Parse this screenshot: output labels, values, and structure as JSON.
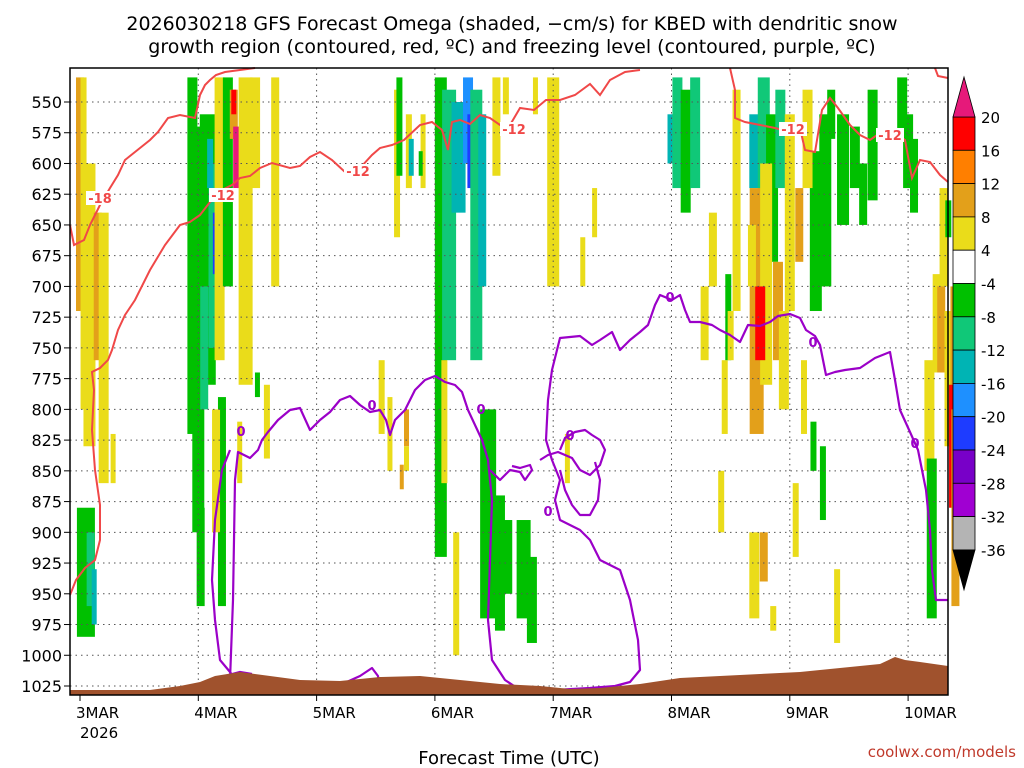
{
  "chart_data": {
    "type": "heatmap",
    "title": [
      "2026030218 GFS Forecast Omega (shaded, −cm/s) for KBED with dendritic snow",
      "growth region (contoured, red, ºC) and freezing level (contoured, purple, ºC)"
    ],
    "xlabel": "Forecast Time (UTC)",
    "credit": "coolwx.com/models",
    "x_ticks": [
      "3MAR",
      "4MAR",
      "5MAR",
      "6MAR",
      "7MAR",
      "8MAR",
      "9MAR",
      "10MAR"
    ],
    "x_tick_year": "2026",
    "y_ticks": [
      "550",
      "575",
      "600",
      "625",
      "650",
      "675",
      "700",
      "725",
      "750",
      "775",
      "800",
      "825",
      "850",
      "875",
      "900",
      "925",
      "950",
      "975",
      "1000",
      "1025"
    ],
    "ylim": [
      1033,
      530
    ],
    "grid": true,
    "colorbar": {
      "labels": [
        "20",
        "16",
        "12",
        "8",
        "4",
        "-4",
        "-8",
        "-12",
        "-16",
        "-20",
        "-24",
        "-28",
        "-32",
        "-36"
      ],
      "colors": [
        "#ff0000",
        "#ff7f00",
        "#e3a01a",
        "#eadc1a",
        "#ffffff",
        "#00c000",
        "#10c878",
        "#00b4b4",
        "#1e90ff",
        "#1e3cff",
        "#7800c8",
        "#a000d2",
        "#b4b4b4"
      ],
      "top_color": "#e6197a",
      "bottom_color": "#000000"
    },
    "contour_labels": {
      "red": [
        "-18",
        "-12",
        "-12",
        "-12",
        "-12",
        "-12"
      ],
      "purple": [
        "0",
        "0",
        "0",
        "0",
        "0",
        "0",
        "0",
        "0"
      ]
    },
    "colors": {
      "red_contour": "#f04848",
      "purple_contour": "#9b00c8",
      "terrain": "#a0522d",
      "grid": "#555555"
    }
  }
}
